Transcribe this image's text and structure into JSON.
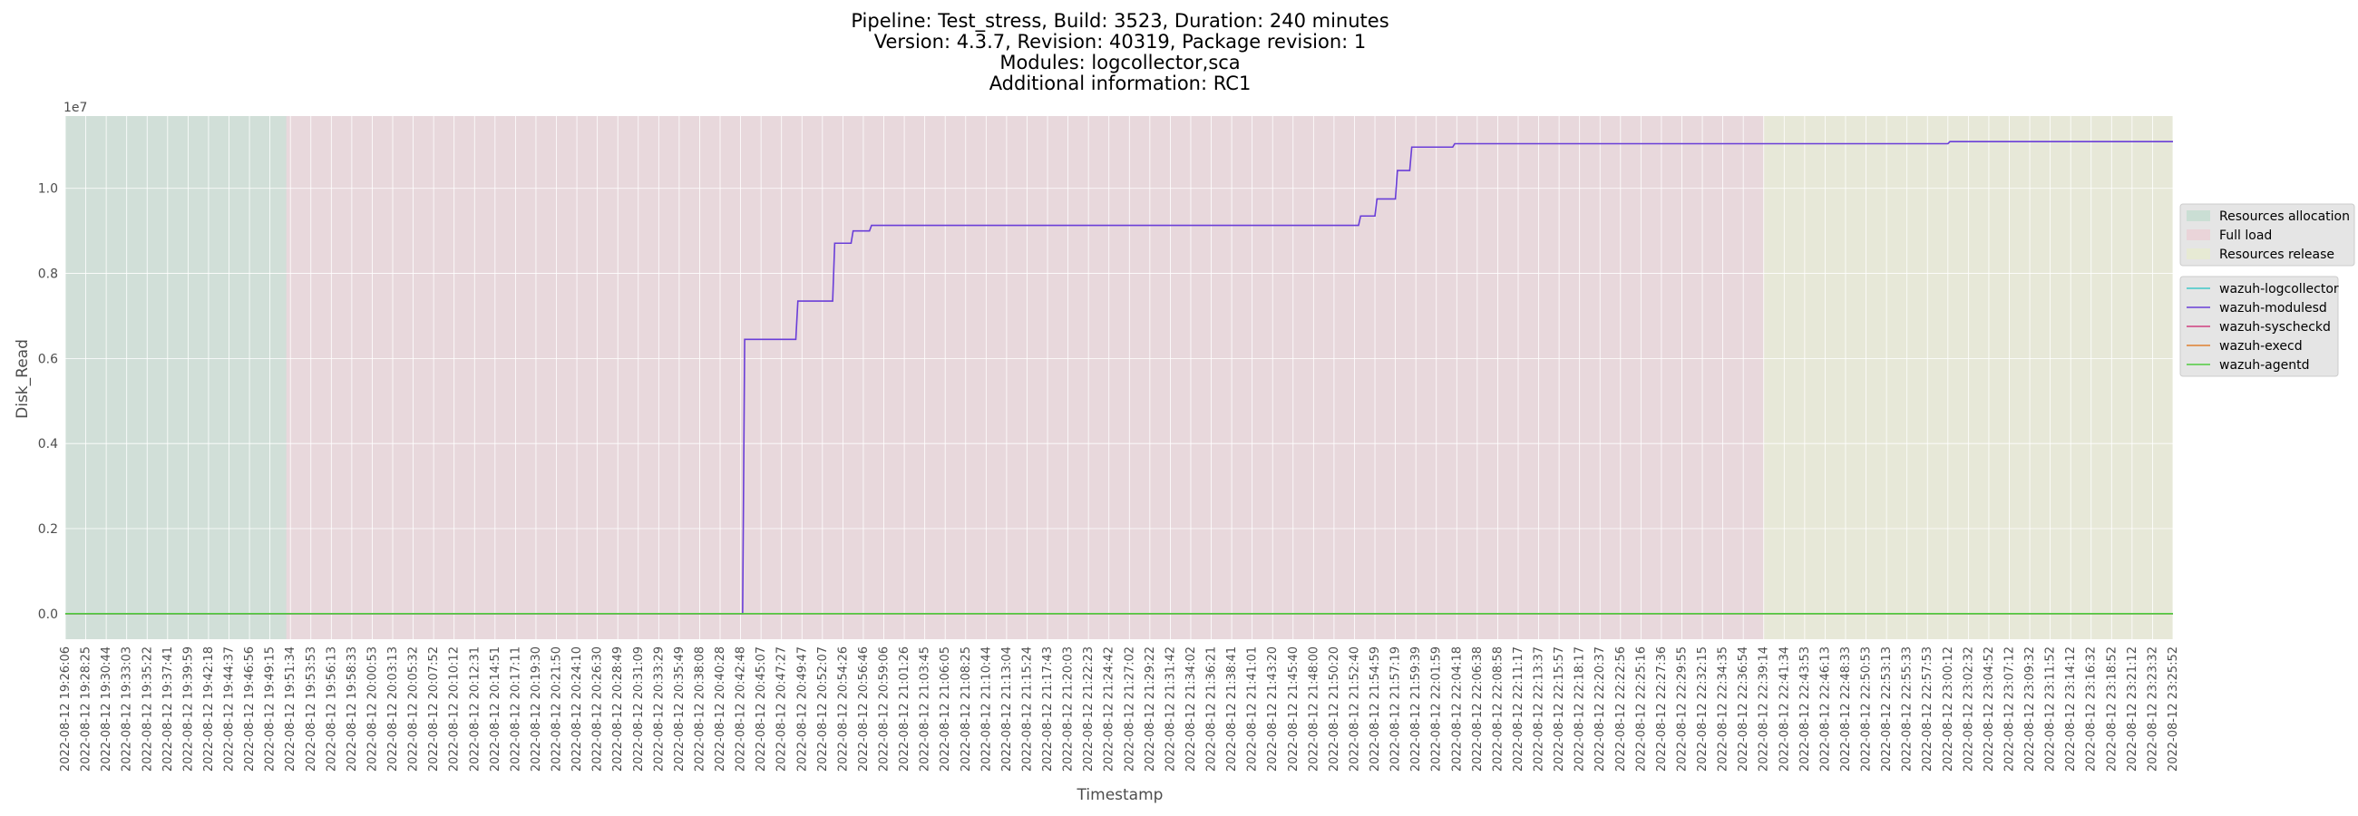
{
  "chart_data": {
    "type": "line",
    "title_lines": [
      "Pipeline: Test_stress, Build: 3523, Duration: 240 minutes",
      "Version: 4.3.7, Revision: 40319, Package revision: 1",
      "Modules: logcollector,sca",
      "Additional information: RC1"
    ],
    "xlabel": "Timestamp",
    "ylabel": "Disk_Read",
    "y_offset_label": "1e7",
    "ylim": [
      -0.06,
      1.17
    ],
    "y_scale_note": "values in units of 1e7",
    "y_ticks": [
      "0.0",
      "0.2",
      "0.4",
      "0.6",
      "0.8",
      "1.0"
    ],
    "y_tick_values": [
      0.0,
      0.2,
      0.4,
      0.6,
      0.8,
      1.0
    ],
    "grid": true,
    "background": "#e5e5e5",
    "x_ticks": [
      "2022-08-12 19:26:06",
      "2022-08-12 19:28:25",
      "2022-08-12 19:30:44",
      "2022-08-12 19:33:03",
      "2022-08-12 19:35:22",
      "2022-08-12 19:37:41",
      "2022-08-12 19:39:59",
      "2022-08-12 19:42:18",
      "2022-08-12 19:44:37",
      "2022-08-12 19:46:56",
      "2022-08-12 19:49:15",
      "2022-08-12 19:51:34",
      "2022-08-12 19:53:53",
      "2022-08-12 19:56:13",
      "2022-08-12 19:58:33",
      "2022-08-12 20:00:53",
      "2022-08-12 20:03:13",
      "2022-08-12 20:05:32",
      "2022-08-12 20:07:52",
      "2022-08-12 20:10:12",
      "2022-08-12 20:12:31",
      "2022-08-12 20:14:51",
      "2022-08-12 20:17:11",
      "2022-08-12 20:19:30",
      "2022-08-12 20:21:50",
      "2022-08-12 20:24:10",
      "2022-08-12 20:26:30",
      "2022-08-12 20:28:49",
      "2022-08-12 20:31:09",
      "2022-08-12 20:33:29",
      "2022-08-12 20:35:49",
      "2022-08-12 20:38:08",
      "2022-08-12 20:40:28",
      "2022-08-12 20:42:48",
      "2022-08-12 20:45:07",
      "2022-08-12 20:47:27",
      "2022-08-12 20:49:47",
      "2022-08-12 20:52:07",
      "2022-08-12 20:54:26",
      "2022-08-12 20:56:46",
      "2022-08-12 20:59:06",
      "2022-08-12 21:01:26",
      "2022-08-12 21:03:45",
      "2022-08-12 21:06:05",
      "2022-08-12 21:08:25",
      "2022-08-12 21:10:44",
      "2022-08-12 21:13:04",
      "2022-08-12 21:15:24",
      "2022-08-12 21:17:43",
      "2022-08-12 21:20:03",
      "2022-08-12 21:22:23",
      "2022-08-12 21:24:42",
      "2022-08-12 21:27:02",
      "2022-08-12 21:29:22",
      "2022-08-12 21:31:42",
      "2022-08-12 21:34:02",
      "2022-08-12 21:36:21",
      "2022-08-12 21:38:41",
      "2022-08-12 21:41:01",
      "2022-08-12 21:43:20",
      "2022-08-12 21:45:40",
      "2022-08-12 21:48:00",
      "2022-08-12 21:50:20",
      "2022-08-12 21:52:40",
      "2022-08-12 21:54:59",
      "2022-08-12 21:57:19",
      "2022-08-12 21:59:39",
      "2022-08-12 22:01:59",
      "2022-08-12 22:04:18",
      "2022-08-12 22:06:38",
      "2022-08-12 22:08:58",
      "2022-08-12 22:11:17",
      "2022-08-12 22:13:37",
      "2022-08-12 22:15:57",
      "2022-08-12 22:18:17",
      "2022-08-12 22:20:37",
      "2022-08-12 22:22:56",
      "2022-08-12 22:25:16",
      "2022-08-12 22:27:36",
      "2022-08-12 22:29:55",
      "2022-08-12 22:32:15",
      "2022-08-12 22:34:35",
      "2022-08-12 22:36:54",
      "2022-08-12 22:39:14",
      "2022-08-12 22:41:34",
      "2022-08-12 22:43:53",
      "2022-08-12 22:46:13",
      "2022-08-12 22:48:33",
      "2022-08-12 22:50:53",
      "2022-08-12 22:53:13",
      "2022-08-12 22:55:33",
      "2022-08-12 22:57:53",
      "2022-08-12 23:00:12",
      "2022-08-12 23:02:32",
      "2022-08-12 23:04:52",
      "2022-08-12 23:07:12",
      "2022-08-12 23:09:32",
      "2022-08-12 23:11:52",
      "2022-08-12 23:14:12",
      "2022-08-12 23:16:32",
      "2022-08-12 23:18:52",
      "2022-08-12 23:21:12",
      "2022-08-12 23:23:32",
      "2022-08-12 23:25:52"
    ],
    "phases": [
      {
        "name": "Resources allocation",
        "start_tick": 0,
        "end_tick": 10.8,
        "color": "#b8d8c8"
      },
      {
        "name": "Full load",
        "start_tick": 10.8,
        "end_tick": 83.0,
        "color": "#ecc8d0"
      },
      {
        "name": "Resources release",
        "start_tick": 83.0,
        "end_tick": 103,
        "color": "#e8ecc8"
      }
    ],
    "series": [
      {
        "name": "wazuh-logcollector",
        "color": "#40c8c8",
        "points": [
          [
            0,
            0
          ],
          [
            103,
            0
          ]
        ]
      },
      {
        "name": "wazuh-modulesd",
        "color": "#6a3ed8",
        "points": [
          [
            0,
            0
          ],
          [
            33.1,
            0
          ],
          [
            33.2,
            0.645
          ],
          [
            35.7,
            0.645
          ],
          [
            35.8,
            0.735
          ],
          [
            37.5,
            0.735
          ],
          [
            37.6,
            0.871
          ],
          [
            38.4,
            0.871
          ],
          [
            38.5,
            0.9
          ],
          [
            39.3,
            0.9
          ],
          [
            39.4,
            0.913
          ],
          [
            63.2,
            0.913
          ],
          [
            63.3,
            0.935
          ],
          [
            64.0,
            0.935
          ],
          [
            64.1,
            0.975
          ],
          [
            65.0,
            0.975
          ],
          [
            65.1,
            1.042
          ],
          [
            65.7,
            1.042
          ],
          [
            65.8,
            1.097
          ],
          [
            67.8,
            1.097
          ],
          [
            67.9,
            1.105
          ],
          [
            92.0,
            1.105
          ],
          [
            92.1,
            1.11
          ],
          [
            103,
            1.11
          ]
        ]
      },
      {
        "name": "wazuh-syscheckd",
        "color": "#d04080",
        "points": [
          [
            0,
            0
          ],
          [
            103,
            0
          ]
        ]
      },
      {
        "name": "wazuh-execd",
        "color": "#e08030",
        "points": [
          [
            0,
            0
          ],
          [
            103,
            0
          ]
        ]
      },
      {
        "name": "wazuh-agentd",
        "color": "#50cc40",
        "points": [
          [
            0,
            0
          ],
          [
            103,
            0
          ]
        ]
      }
    ]
  }
}
